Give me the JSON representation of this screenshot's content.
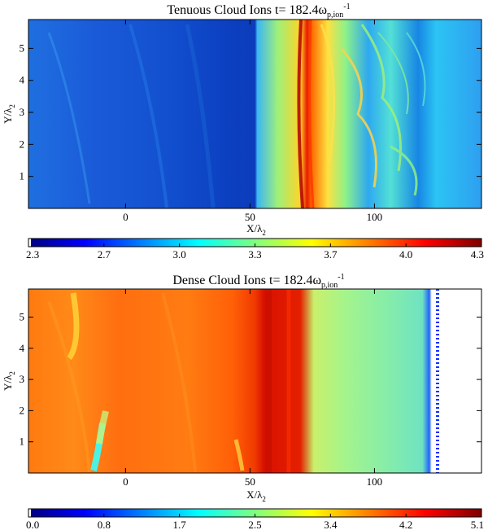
{
  "chart_data": [
    {
      "type": "heatmap",
      "title": "Tenuous Cloud Ions t= 182.4ω",
      "title_sub": "p,ion",
      "title_sup": "-1",
      "xlabel_main": "X/λ",
      "xlabel_sub": "2",
      "ylabel_main": "Y/λ",
      "ylabel_sub": "2",
      "x_ticks": [
        "0",
        "50",
        "100"
      ],
      "y_ticks": [
        "1",
        "2",
        "3",
        "4",
        "5"
      ],
      "x_tick_values": [
        0,
        50,
        100
      ],
      "y_tick_values": [
        1,
        2,
        3,
        4,
        5
      ],
      "xlim": [
        -39,
        143
      ],
      "ylim": [
        0,
        5.9
      ],
      "colorbar_ticks": [
        "2.3",
        "2.7",
        "3.0",
        "3.3",
        "3.7",
        "4.0",
        "4.3"
      ],
      "colorbar_range": [
        2.3,
        4.3
      ],
      "colormap": "jet",
      "regions": [
        {
          "x": [
            -39,
            55
          ],
          "level": 0.18
        },
        {
          "x": [
            55,
            73
          ],
          "level": 0.55
        },
        {
          "x": [
            73,
            78
          ],
          "level": 0.9
        },
        {
          "x": [
            78,
            125
          ],
          "level": 0.5
        },
        {
          "x": [
            125,
            143
          ],
          "level": 0.35
        }
      ]
    },
    {
      "type": "heatmap",
      "title": "Dense Cloud Ions t= 182.4ω",
      "title_sub": "p,ion",
      "title_sup": "-1",
      "xlabel_main": "X/λ",
      "xlabel_sub": "2",
      "ylabel_main": "Y/λ",
      "ylabel_sub": "2",
      "x_ticks": [
        "0",
        "50",
        "100"
      ],
      "y_ticks": [
        "1",
        "2",
        "3",
        "4",
        "5"
      ],
      "x_tick_values": [
        0,
        50,
        100
      ],
      "y_tick_values": [
        1,
        2,
        3,
        4,
        5
      ],
      "xlim": [
        -39,
        143
      ],
      "ylim": [
        0,
        5.9
      ],
      "colorbar_ticks": [
        "0.0",
        "0.8",
        "1.7",
        "2.5",
        "3.4",
        "4.2",
        "5.1"
      ],
      "colorbar_range": [
        0.0,
        5.1
      ],
      "colormap": "jet",
      "regions": [
        {
          "x": [
            -39,
            58
          ],
          "level": 0.8
        },
        {
          "x": [
            58,
            75
          ],
          "level": 0.93
        },
        {
          "x": [
            75,
            128
          ],
          "level": 0.55
        },
        {
          "x": [
            128,
            143
          ],
          "level": null
        }
      ]
    }
  ],
  "colors": {
    "jet_stops": [
      "#00007f",
      "#0000ff",
      "#007fff",
      "#00ffff",
      "#7fff7f",
      "#ffff00",
      "#ff7f00",
      "#ff0000",
      "#7f0000"
    ]
  }
}
